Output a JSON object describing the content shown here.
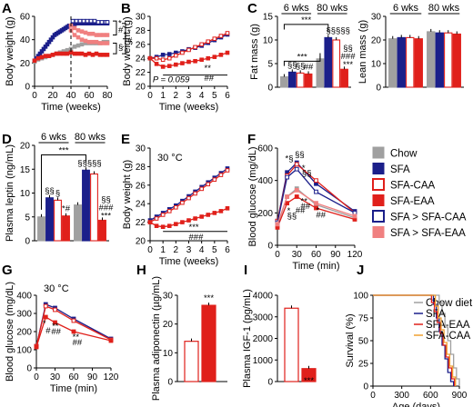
{
  "legend": {
    "items": [
      {
        "label": "Chow",
        "color": "#a0a0a0",
        "fill": true
      },
      {
        "label": "SFA",
        "color": "#1b1f8a",
        "fill": true
      },
      {
        "label": "SFA-CAA",
        "color": "#e0201b",
        "fill": false
      },
      {
        "label": "SFA-EAA",
        "color": "#e0201b",
        "fill": true
      },
      {
        "label": "SFA > SFA-CAA",
        "color": "#1b1f8a",
        "fill": false
      },
      {
        "label": "SFA > SFA-EAA",
        "color": "#f08080",
        "fill": true
      }
    ]
  },
  "chart_data": [
    {
      "panel": "A",
      "type": "line",
      "xlabel": "Time (weeks)",
      "ylabel": "Body weight (g)",
      "xlim": [
        0,
        80
      ],
      "ylim": [
        0,
        60
      ],
      "xticks": [
        "0",
        "20",
        "40",
        "60",
        "80"
      ],
      "yticks": [
        "0",
        "20",
        "40",
        "60"
      ],
      "annotations": [
        "*",
        "#",
        "§",
        "*",
        "#"
      ],
      "series": [
        {
          "x": [
            0,
            2,
            4,
            6,
            8,
            10,
            12,
            14,
            16,
            18,
            20,
            22,
            24,
            26,
            28,
            30,
            32,
            34,
            36,
            38,
            40,
            42,
            44,
            46,
            48,
            50,
            52,
            54,
            56,
            58,
            60,
            62,
            64,
            66,
            68,
            70,
            72,
            74,
            76,
            78,
            80
          ],
          "y": [
            22,
            24,
            26,
            28,
            30,
            32,
            34,
            36,
            38,
            40,
            42,
            44,
            45,
            46,
            47,
            48,
            49,
            50,
            51,
            52,
            52,
            53,
            53,
            54,
            54,
            54,
            54,
            54,
            54,
            54,
            54,
            54,
            54,
            54,
            54,
            54,
            54,
            54,
            54,
            54,
            54
          ]
        },
        {
          "x": [
            0,
            4,
            8,
            12,
            16,
            20,
            24,
            28,
            32,
            36,
            40,
            44,
            48,
            52,
            56,
            60,
            64,
            68,
            72,
            76,
            80
          ],
          "y": [
            21,
            23,
            24,
            25,
            26,
            27,
            28,
            29,
            30,
            31,
            32,
            34,
            35,
            36,
            37,
            37,
            37,
            37,
            37,
            38,
            38
          ]
        },
        {
          "x": [
            40,
            44,
            48,
            52,
            56,
            60,
            64,
            68,
            72,
            76,
            80
          ],
          "y": [
            52,
            50,
            48,
            47,
            46,
            45,
            45,
            44,
            44,
            44,
            44
          ]
        },
        {
          "x": [
            0,
            4,
            8,
            12,
            16,
            20,
            24,
            28,
            32,
            36,
            40,
            44,
            48,
            52,
            56,
            60,
            64,
            68,
            72,
            76,
            80
          ],
          "y": [
            22,
            24,
            25,
            26,
            26,
            27,
            28,
            28,
            28,
            28,
            29,
            28,
            28,
            28,
            27,
            28,
            27,
            28,
            27,
            27,
            27
          ]
        },
        {
          "x": [
            42,
            46,
            50,
            54,
            58,
            62,
            66,
            70,
            74,
            78,
            80
          ],
          "y": [
            56,
            56,
            56,
            56,
            56,
            56,
            56,
            55,
            55,
            55,
            55
          ]
        },
        {
          "x": [
            40,
            44,
            48,
            52,
            56,
            60,
            64,
            68,
            72,
            76,
            80
          ],
          "y": [
            48,
            44,
            42,
            40,
            39,
            38,
            38,
            38,
            37,
            37,
            37
          ]
        }
      ]
    },
    {
      "panel": "B",
      "type": "line",
      "xlabel": "Time (weeks)",
      "ylabel": "Body weight (g)",
      "xlim": [
        0,
        6
      ],
      "ylim": [
        20,
        30
      ],
      "xticks": [
        "0",
        "1",
        "2",
        "3",
        "4",
        "5",
        "6"
      ],
      "yticks": [
        "20",
        "22",
        "24",
        "26",
        "28",
        "30"
      ],
      "annotations": [
        "P = 0.059",
        "**",
        "##"
      ],
      "series": [
        {
          "name": "SFA",
          "x": [
            0,
            0.5,
            1,
            1.5,
            2,
            2.5,
            3,
            3.5,
            4,
            4.5,
            5,
            5.5,
            6
          ],
          "y": [
            24,
            24.2,
            24.5,
            24.6,
            24.8,
            25,
            25.3,
            25.5,
            25.8,
            26.2,
            26.6,
            27,
            27.4
          ]
        },
        {
          "name": "SFA-CAA",
          "x": [
            0,
            0.5,
            1,
            1.5,
            2,
            2.5,
            3,
            3.5,
            4,
            4.5,
            5,
            5.5,
            6
          ],
          "y": [
            24,
            24,
            23.8,
            24,
            24.4,
            24.8,
            25.2,
            25.6,
            26,
            26.4,
            26.8,
            27.2,
            27.6
          ]
        },
        {
          "name": "SFA-EAA",
          "x": [
            0,
            0.5,
            1,
            1.5,
            2,
            2.5,
            3,
            3.5,
            4,
            4.5,
            5,
            5.5,
            6
          ],
          "y": [
            24,
            23.2,
            22.8,
            22.9,
            23.1,
            23.3,
            23.5,
            23.6,
            23.8,
            24,
            24.2,
            24.5,
            24.8
          ]
        }
      ]
    },
    {
      "panel": "C-fat",
      "type": "bar",
      "ylabel": "Fat mass (g)",
      "ylim": [
        0,
        15
      ],
      "yticks": [
        "0",
        "5",
        "10",
        "15"
      ],
      "groups": [
        "6 wks",
        "80 wks"
      ],
      "categories": [
        "Chow",
        "SFA",
        "SFA-CAA",
        "SFA-EAA",
        "Chow",
        "SFA",
        "SFA-CAA",
        "SFA-EAA"
      ],
      "values": [
        2.2,
        3.2,
        3.0,
        2.8,
        6.0,
        10.5,
        10.0,
        3.8
      ],
      "annotations": [
        "§§",
        "§§",
        "##",
        "***",
        "***",
        "§§§§§",
        "§§",
        "###",
        "***"
      ]
    },
    {
      "panel": "C-lean",
      "type": "bar",
      "ylabel": "Lean mass (g)",
      "ylim": [
        0,
        30
      ],
      "yticks": [
        "0",
        "10",
        "20",
        "30"
      ],
      "groups": [
        "6 wks",
        "80 wks"
      ],
      "categories": [
        "Chow",
        "SFA",
        "SFA-CAA",
        "SFA-EAA",
        "Chow",
        "SFA",
        "SFA-CAA",
        "SFA-EAA"
      ],
      "values": [
        20.5,
        21.0,
        21.0,
        20.5,
        23.5,
        23.0,
        23.0,
        22.5
      ]
    },
    {
      "panel": "D",
      "type": "bar",
      "ylabel": "Plasma leptin (ng/mL)",
      "ylim": [
        0,
        20
      ],
      "yticks": [
        "0",
        "5",
        "10",
        "15",
        "20"
      ],
      "groups": [
        "6 wks",
        "80 wks"
      ],
      "categories": [
        "Chow",
        "SFA",
        "SFA-CAA",
        "SFA-EAA",
        "Chow",
        "SFA",
        "SFA-CAA",
        "SFA-EAA"
      ],
      "values": [
        5.0,
        9.0,
        8.5,
        5.2,
        7.5,
        14.8,
        14.0,
        4.3
      ],
      "annotations": [
        "§§",
        "§",
        "*#",
        "***",
        "§§§§§",
        "§§",
        "###",
        "***"
      ]
    },
    {
      "panel": "E",
      "type": "line",
      "xlabel": "Time (weeks)",
      "ylabel": "Body weight (g)",
      "xlim": [
        0,
        6
      ],
      "ylim": [
        20,
        30
      ],
      "title": "30 °C",
      "xticks": [
        "0",
        "1",
        "2",
        "3",
        "4",
        "5",
        "6"
      ],
      "yticks": [
        "20",
        "22",
        "24",
        "26",
        "28",
        "30"
      ],
      "annotations": [
        "***",
        "###"
      ],
      "series": [
        {
          "name": "SFA",
          "x": [
            0,
            0.5,
            1,
            1.5,
            2,
            2.5,
            3,
            3.5,
            4,
            4.5,
            5,
            5.5,
            6
          ],
          "y": [
            22.2,
            22.6,
            23,
            23.4,
            23.8,
            24.3,
            24.8,
            25.3,
            25.8,
            26.3,
            26.8,
            27.3,
            27.8
          ]
        },
        {
          "name": "SFA-CAA",
          "x": [
            0,
            0.5,
            1,
            1.5,
            2,
            2.5,
            3,
            3.5,
            4,
            4.5,
            5,
            5.5,
            6
          ],
          "y": [
            22,
            22.4,
            22.8,
            23.2,
            23.6,
            24.1,
            24.6,
            25.1,
            25.6,
            26.1,
            26.6,
            27.1,
            27.6
          ]
        },
        {
          "name": "SFA-EAA",
          "x": [
            0,
            0.5,
            1,
            1.5,
            2,
            2.5,
            3,
            3.5,
            4,
            4.5,
            5,
            5.5,
            6
          ],
          "y": [
            22,
            21.6,
            21.5,
            21.6,
            21.8,
            22,
            22.2,
            22.4,
            22.6,
            22.8,
            23,
            23.2,
            23.5
          ]
        }
      ]
    },
    {
      "panel": "F",
      "type": "line",
      "xlabel": "Time (min)",
      "ylabel": "Blood glucose (mg/dL)",
      "xlim": [
        0,
        120
      ],
      "ylim": [
        0,
        600
      ],
      "xticks": [
        "0",
        "30",
        "60",
        "90",
        "120"
      ],
      "yticks": [
        "0",
        "200",
        "400",
        "600"
      ],
      "annotations": [
        "*§",
        "§§",
        "*",
        "§§",
        "*",
        "§§",
        "##",
        "**",
        "##",
        "*",
        "##"
      ],
      "series": [
        {
          "name": "Chow",
          "x": [
            0,
            15,
            30,
            60,
            120
          ],
          "y": [
            120,
            300,
            350,
            250,
            170
          ]
        },
        {
          "name": "SFA",
          "x": [
            0,
            15,
            30,
            60,
            120
          ],
          "y": [
            150,
            450,
            510,
            380,
            210
          ]
        },
        {
          "name": "SFA-CAA",
          "x": [
            0,
            15,
            30,
            60,
            120
          ],
          "y": [
            150,
            430,
            500,
            400,
            200
          ]
        },
        {
          "name": "SFA-EAA",
          "x": [
            0,
            15,
            30,
            60,
            120
          ],
          "y": [
            110,
            260,
            300,
            230,
            160
          ]
        },
        {
          "name": "SFA > SFA-CAA",
          "x": [
            0,
            15,
            30,
            60,
            120
          ],
          "y": [
            140,
            420,
            470,
            330,
            200
          ]
        },
        {
          "name": "SFA > SFA-EAA",
          "x": [
            0,
            15,
            30,
            60,
            120
          ],
          "y": [
            130,
            300,
            340,
            260,
            180
          ]
        }
      ]
    },
    {
      "panel": "G",
      "type": "line",
      "xlabel": "Time (min)",
      "ylabel": "Blood glucose (mg/dL)",
      "xlim": [
        0,
        120
      ],
      "ylim": [
        0,
        400
      ],
      "title": "30 °C",
      "xticks": [
        "0",
        "30",
        "60",
        "90",
        "120"
      ],
      "yticks": [
        "0",
        "100",
        "200",
        "300",
        "400"
      ],
      "annotations": [
        "*",
        "**",
        "#",
        "##",
        "**",
        "##"
      ],
      "series": [
        {
          "name": "SFA",
          "x": [
            0,
            15,
            30,
            60,
            120
          ],
          "y": [
            120,
            350,
            330,
            270,
            160
          ]
        },
        {
          "name": "SFA-CAA",
          "x": [
            0,
            15,
            30,
            60,
            120
          ],
          "y": [
            120,
            340,
            320,
            260,
            155
          ]
        },
        {
          "name": "SFA-EAA",
          "x": [
            0,
            15,
            30,
            60,
            120
          ],
          "y": [
            115,
            280,
            250,
            200,
            150
          ]
        }
      ]
    },
    {
      "panel": "H",
      "type": "bar",
      "ylabel": "Plasma adiponectin (µg/mL)",
      "ylim": [
        0,
        30
      ],
      "yticks": [
        "0",
        "10",
        "20",
        "30"
      ],
      "categories": [
        "SFA-CAA",
        "SFA-EAA"
      ],
      "values": [
        14,
        26.5
      ],
      "annotations": [
        "***"
      ]
    },
    {
      "panel": "I",
      "type": "bar",
      "ylabel": "Plasma IGF-1 (pg/mL)",
      "ylim": [
        0,
        4000
      ],
      "yticks": [
        "0",
        "1000",
        "2000",
        "3000",
        "4000"
      ],
      "categories": [
        "SFA-CAA",
        "SFA-EAA"
      ],
      "values": [
        3400,
        600
      ],
      "annotations": [
        "***"
      ]
    },
    {
      "panel": "J",
      "type": "line",
      "xlabel": "Age (days)",
      "ylabel": "Survival (%)",
      "xlim": [
        0,
        900
      ],
      "ylim": [
        0,
        100
      ],
      "xticks": [
        "0",
        "300",
        "600",
        "900"
      ],
      "yticks": [
        "0",
        "25",
        "50",
        "75",
        "100"
      ],
      "series": [
        {
          "name": "Chow diet",
          "x": [
            0,
            660,
            690,
            720,
            750,
            780,
            810,
            840,
            870,
            900
          ],
          "y": [
            100,
            100,
            92,
            80,
            65,
            50,
            35,
            20,
            8,
            0
          ]
        },
        {
          "name": "SFA",
          "x": [
            0,
            600,
            630,
            660,
            690,
            720,
            750,
            780,
            810,
            840
          ],
          "y": [
            100,
            100,
            90,
            75,
            60,
            45,
            30,
            15,
            5,
            0
          ]
        },
        {
          "name": "SFA-EAA",
          "x": [
            0,
            580,
            610,
            640,
            670,
            700,
            730,
            760,
            790,
            820,
            850
          ],
          "y": [
            100,
            100,
            92,
            82,
            70,
            58,
            45,
            32,
            20,
            8,
            0
          ]
        },
        {
          "name": "SFA-CAA",
          "x": [
            0,
            620,
            650,
            680,
            710,
            740,
            770,
            800,
            830,
            860
          ],
          "y": [
            100,
            100,
            88,
            75,
            62,
            48,
            35,
            22,
            10,
            0
          ]
        }
      ]
    }
  ]
}
